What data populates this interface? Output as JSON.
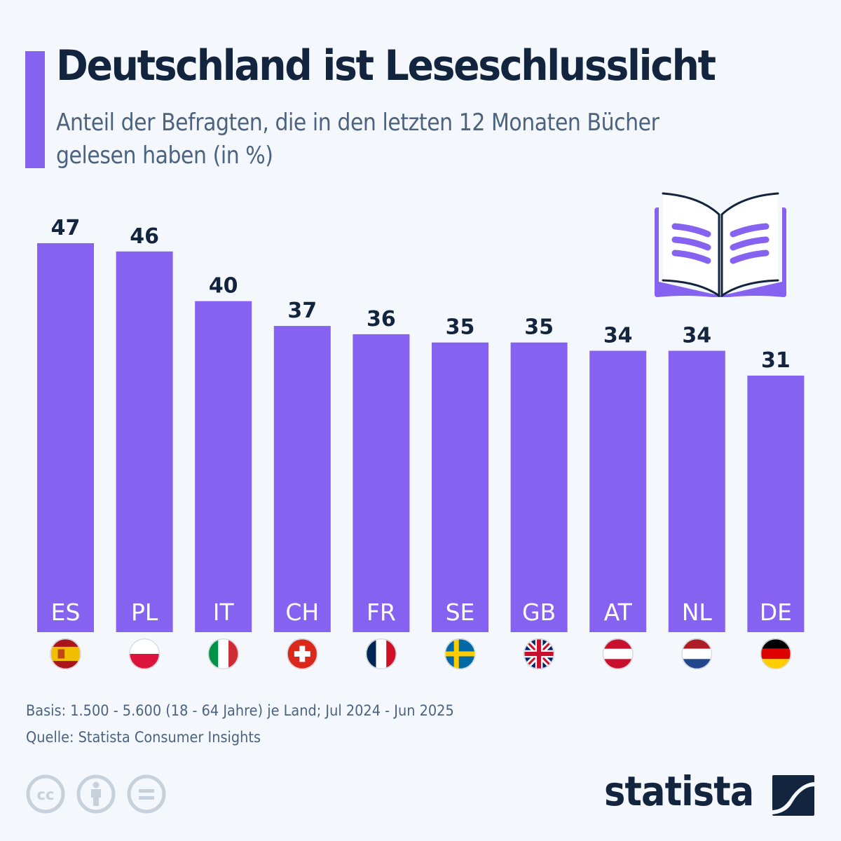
{
  "header": {
    "title": "Deutschland ist Leseschlusslicht",
    "subtitle": "Anteil der Befragten, die in den letzten 12 Monaten Bücher gelesen haben (in %)"
  },
  "colors": {
    "accent": "#8562f0",
    "title": "#13253e",
    "subtitle": "#4b6380",
    "background": "#f4f7fb",
    "bar_label": "#ffffff"
  },
  "illustration": {
    "icon": "open-book-icon"
  },
  "chart_data": {
    "type": "bar",
    "title": "Deutschland ist Leseschlusslicht",
    "subtitle": "Anteil der Befragten, die in den letzten 12 Monaten Bücher gelesen haben (in %)",
    "xlabel": "",
    "ylabel": "",
    "unit": "%",
    "ylim": [
      0,
      47
    ],
    "grid": false,
    "legend": "none",
    "categories": [
      "ES",
      "PL",
      "IT",
      "CH",
      "FR",
      "SE",
      "GB",
      "AT",
      "NL",
      "DE"
    ],
    "values": [
      47,
      46,
      40,
      37,
      36,
      35,
      35,
      34,
      34,
      31
    ],
    "flags": [
      "spain-flag-icon",
      "poland-flag-icon",
      "italy-flag-icon",
      "switzerland-flag-icon",
      "france-flag-icon",
      "sweden-flag-icon",
      "uk-flag-icon",
      "austria-flag-icon",
      "netherlands-flag-icon",
      "germany-flag-icon"
    ]
  },
  "footer": {
    "basis": "Basis: 1.500 - 5.600 (18 - 64 Jahre) je Land; Jul 2024 - Jun 2025",
    "source": "Quelle: Statista Consumer Insights",
    "license_icons": [
      "cc-icon",
      "attribution-icon",
      "no-derivatives-icon"
    ],
    "brand": "statista"
  }
}
